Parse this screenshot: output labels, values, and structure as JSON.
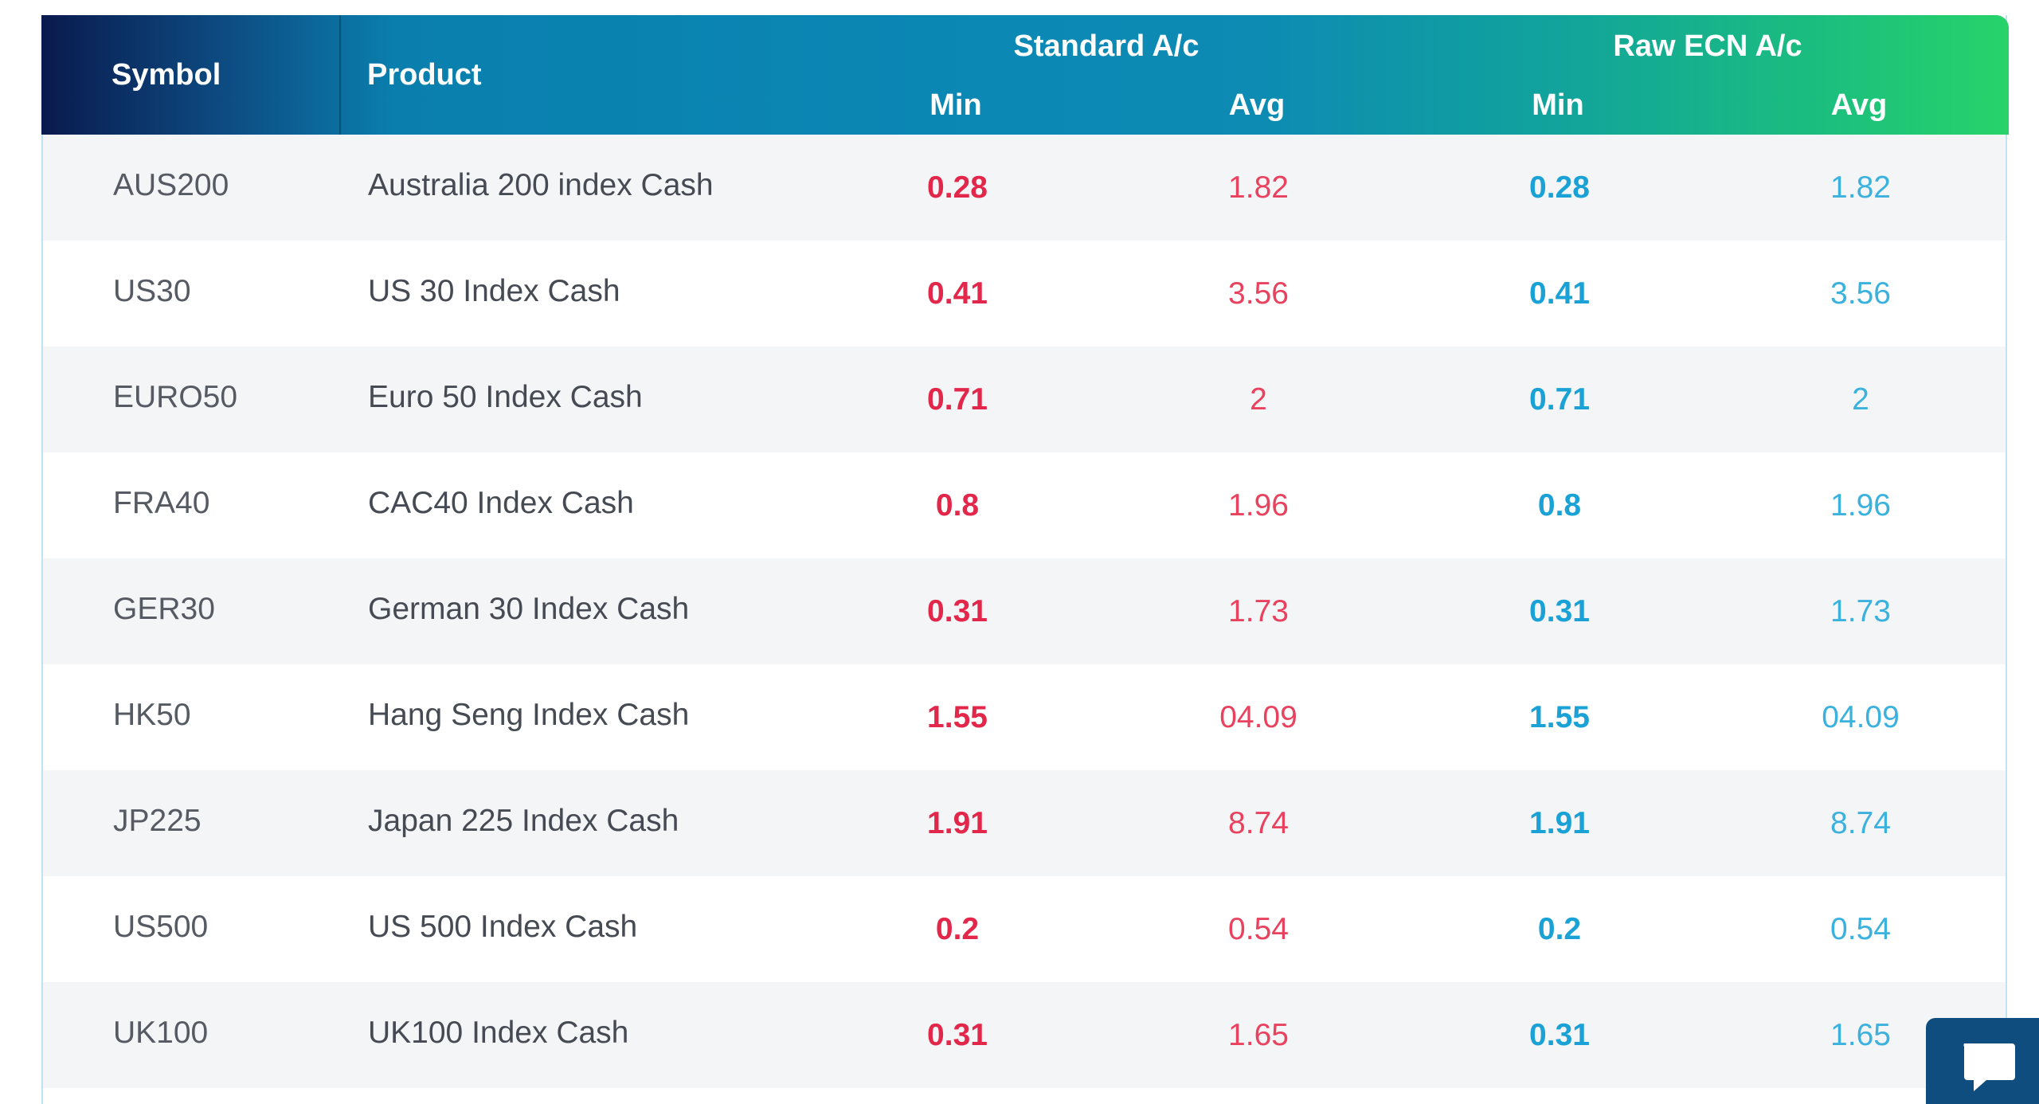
{
  "header": {
    "symbol": "Symbol",
    "product": "Product",
    "standard_group": "Standard A/c",
    "raw_group": "Raw ECN A/c",
    "min": "Min",
    "avg": "Avg"
  },
  "colors": {
    "standard_text": "#e3274a",
    "raw_text": "#1aa2d6",
    "header_start": "#0a1a4e",
    "header_end": "#27d36a"
  },
  "rows": [
    {
      "symbol": "AUS200",
      "product": "Australia 200 index Cash",
      "std_min": "0.28",
      "std_avg": "1.82",
      "raw_min": "0.28",
      "raw_avg": "1.82"
    },
    {
      "symbol": "US30",
      "product": "US 30 Index Cash",
      "std_min": "0.41",
      "std_avg": "3.56",
      "raw_min": "0.41",
      "raw_avg": "3.56"
    },
    {
      "symbol": "EURO50",
      "product": "Euro 50 Index Cash",
      "std_min": "0.71",
      "std_avg": "2",
      "raw_min": "0.71",
      "raw_avg": "2"
    },
    {
      "symbol": "FRA40",
      "product": "CAC40 Index Cash",
      "std_min": "0.8",
      "std_avg": "1.96",
      "raw_min": "0.8",
      "raw_avg": "1.96"
    },
    {
      "symbol": "GER30",
      "product": "German 30 Index Cash",
      "std_min": "0.31",
      "std_avg": "1.73",
      "raw_min": "0.31",
      "raw_avg": "1.73"
    },
    {
      "symbol": "HK50",
      "product": "Hang Seng Index Cash",
      "std_min": "1.55",
      "std_avg": "04.09",
      "raw_min": "1.55",
      "raw_avg": "04.09"
    },
    {
      "symbol": "JP225",
      "product": "Japan 225 Index Cash",
      "std_min": "1.91",
      "std_avg": "8.74",
      "raw_min": "1.91",
      "raw_avg": "8.74"
    },
    {
      "symbol": "US500",
      "product": "US 500 Index Cash",
      "std_min": "0.2",
      "std_avg": "0.54",
      "raw_min": "0.2",
      "raw_avg": "0.54"
    },
    {
      "symbol": "UK100",
      "product": "UK100 Index Cash",
      "std_min": "0.31",
      "std_avg": "1.65",
      "raw_min": "0.31",
      "raw_avg": "1.65"
    }
  ],
  "chat_widget": {
    "icon": "chat-bubble-icon"
  }
}
